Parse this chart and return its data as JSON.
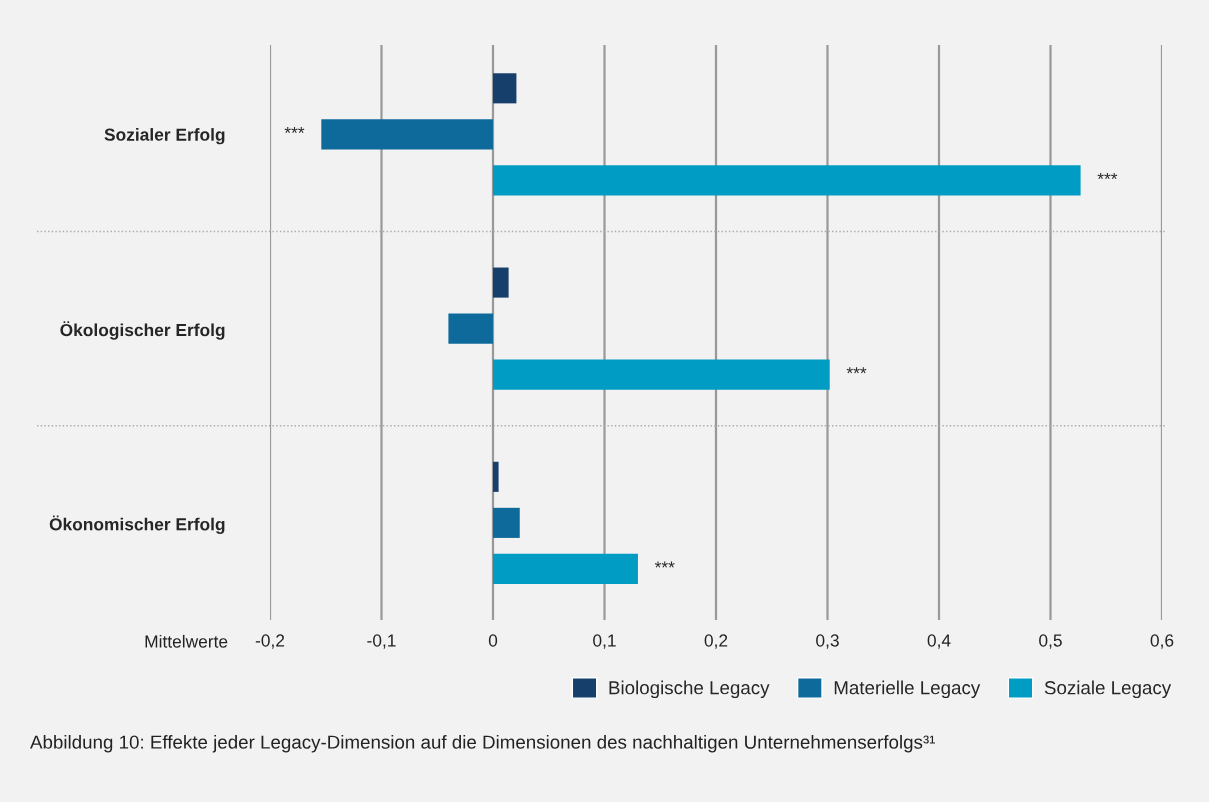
{
  "chart_data": {
    "type": "bar",
    "orientation": "horizontal",
    "categories": [
      "Sozialer Erfolg",
      "Ökologischer Erfolg",
      "Ökonomischer Erfolg"
    ],
    "series": [
      {
        "name": "Biologische Legacy",
        "color": "#173f6c",
        "values": [
          0.021,
          0.014,
          0.005
        ]
      },
      {
        "name": "Materielle Legacy",
        "color": "#0f6a9c",
        "values": [
          -0.154,
          -0.04,
          0.024
        ],
        "value_labels": [
          "***",
          null,
          null
        ]
      },
      {
        "name": "Soziale Legacy",
        "color": "#009cc4",
        "values": [
          0.527,
          0.302,
          0.13
        ],
        "value_labels": [
          "***",
          "***",
          "***"
        ]
      }
    ],
    "xlabel": "Mittelwerte",
    "xlim": [
      -0.2,
      0.6
    ],
    "xticks": [
      {
        "value": -0.2,
        "label": "-0,2"
      },
      {
        "value": -0.1,
        "label": "-0,1"
      },
      {
        "value": 0,
        "label": "0"
      },
      {
        "value": 0.1,
        "label": "0,1"
      },
      {
        "value": 0.2,
        "label": "0,2"
      },
      {
        "value": 0.3,
        "label": "0,3"
      },
      {
        "value": 0.4,
        "label": "0,4"
      },
      {
        "value": 0.5,
        "label": "0,5"
      },
      {
        "value": 0.6,
        "label": "0,6"
      }
    ],
    "grid": true,
    "legend": "bottom right",
    "annotations": [
      "Abbildung 10: Effekte jeder Legacy-Dimension auf die Dimensionen des nachhaltigen Unternehmenserfolgs³¹"
    ]
  }
}
